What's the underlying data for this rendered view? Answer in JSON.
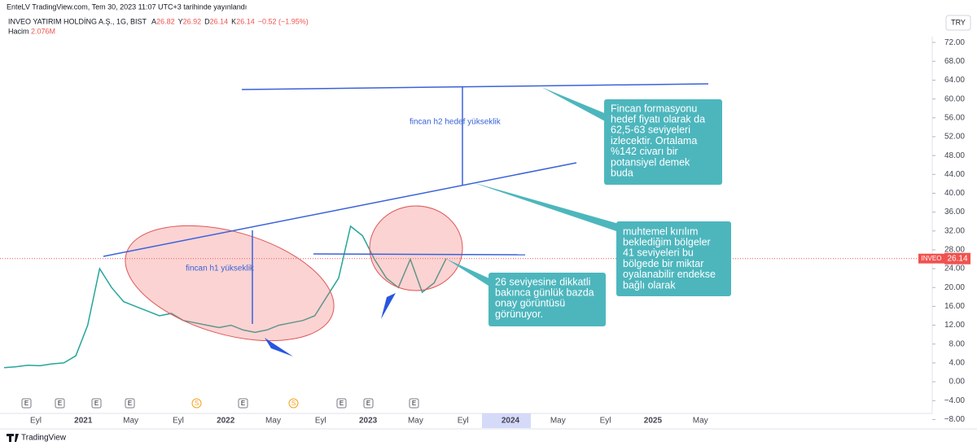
{
  "header": {
    "published": "EnteLV TradingView.com, Tem 30, 2023 11:07 UTC+3 tarihinde yayınlandı",
    "symbol": "INVEO YATIRIM HOLDİNG A.Ş., 1G, BIST",
    "ohlc": [
      {
        "key": "A",
        "value": "26.82"
      },
      {
        "key": "Y",
        "value": "26.92"
      },
      {
        "key": "D",
        "value": "26.14"
      },
      {
        "key": "K",
        "value": "26.14"
      }
    ],
    "change": "−0.52 (−1.95%)",
    "volume_label": "Hacim",
    "volume_value": "2.076M",
    "currency": "TRY"
  },
  "chart_data": {
    "type": "line",
    "color": "#26a69a",
    "series": [
      {
        "name": "INVEO",
        "color": "#26a69a",
        "values": [
          3,
          3.2,
          3.5,
          3.4,
          3.8,
          4,
          5.5,
          12,
          24,
          20,
          17,
          16,
          15,
          14,
          14.5,
          13,
          12.5,
          12,
          11.5,
          12,
          11,
          10.5,
          11,
          12,
          12.5,
          13,
          14,
          18,
          22,
          33,
          31,
          26,
          22,
          20,
          26,
          19,
          21,
          26.14
        ]
      }
    ],
    "ylim": [
      -10,
      81
    ],
    "yticks": [
      {
        "value": 72,
        "label": "72.00"
      },
      {
        "value": 68,
        "label": "68.00"
      },
      {
        "value": 64,
        "label": "64.00"
      },
      {
        "value": 60,
        "label": "60.00"
      },
      {
        "value": 56,
        "label": "56.00"
      },
      {
        "value": 52,
        "label": "52.00"
      },
      {
        "value": 48,
        "label": "48.00"
      },
      {
        "value": 44,
        "label": "44.00"
      },
      {
        "value": 40,
        "label": "40.00"
      },
      {
        "value": 36,
        "label": "36.00"
      },
      {
        "value": 32,
        "label": "32.00"
      },
      {
        "value": 28,
        "label": "28.00"
      },
      {
        "value": 24,
        "label": "24.00"
      },
      {
        "value": 20,
        "label": "20.00"
      },
      {
        "value": 16,
        "label": "16.00"
      },
      {
        "value": 12,
        "label": "12.00"
      },
      {
        "value": 8,
        "label": "8.00"
      },
      {
        "value": 4,
        "label": "4.00"
      },
      {
        "value": 0,
        "label": "0.00"
      },
      {
        "value": -4,
        "label": "−4.00"
      },
      {
        "value": -8,
        "label": "−8.00"
      }
    ],
    "x_labels": [
      "Eyl",
      "2021",
      "May",
      "Eyl",
      "2022",
      "May",
      "Eyl",
      "2023",
      "May",
      "Eyl",
      "2024",
      "May",
      "Eyl",
      "2025",
      "May"
    ],
    "last_price": {
      "symbol": "INVEO",
      "value": 26.14,
      "value_label": "26.14"
    }
  },
  "annotations": {
    "h2": "fincan h2 hedef yükseklik",
    "h1": "fincan h1 yükseklik",
    "callout_1": [
      "Fincan formasyonu",
      "hedef fiyatı olarak da",
      "62,5-63 seviyeleri",
      "izlecektir. Ortalama",
      "%142 civarı bir",
      "potansiyel demek",
      "buda"
    ],
    "callout_2": [
      "muhtemel kırılım",
      "beklediğim bölgeler",
      "41 seviyeleri bu",
      "bölgede bir miktar",
      "oyalanabilir endekse",
      "bağlı olarak"
    ],
    "callout_3": [
      "26 seviyesine dikkatli",
      "bakınca günlük bazda",
      "onay görüntüsü",
      "görünuyor."
    ]
  },
  "footer": {
    "brand": "TradingView"
  }
}
